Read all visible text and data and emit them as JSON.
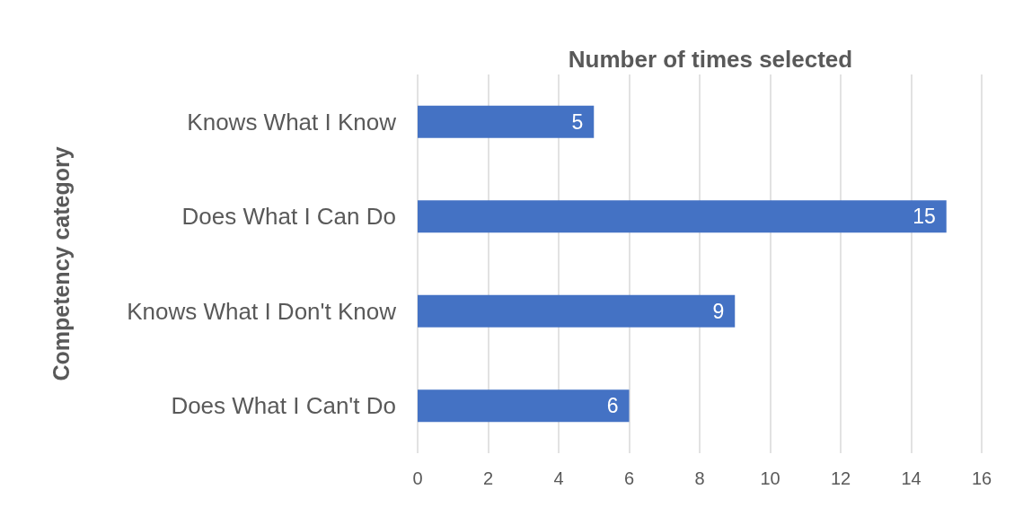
{
  "chart_data": {
    "type": "bar",
    "orientation": "horizontal",
    "title": "Number of times selected",
    "ylabel": "Competency category",
    "categories": [
      "Knows What I Know",
      "Does What I Can Do",
      "Knows What I Don't Know",
      "Does What I Can't Do"
    ],
    "values": [
      5,
      15,
      9,
      6
    ],
    "color": "#4472c4",
    "data_labels": true,
    "xlim": [
      0,
      16
    ],
    "xticks": [
      0,
      2,
      4,
      6,
      8,
      10,
      12,
      14,
      16
    ],
    "grid": "x"
  }
}
